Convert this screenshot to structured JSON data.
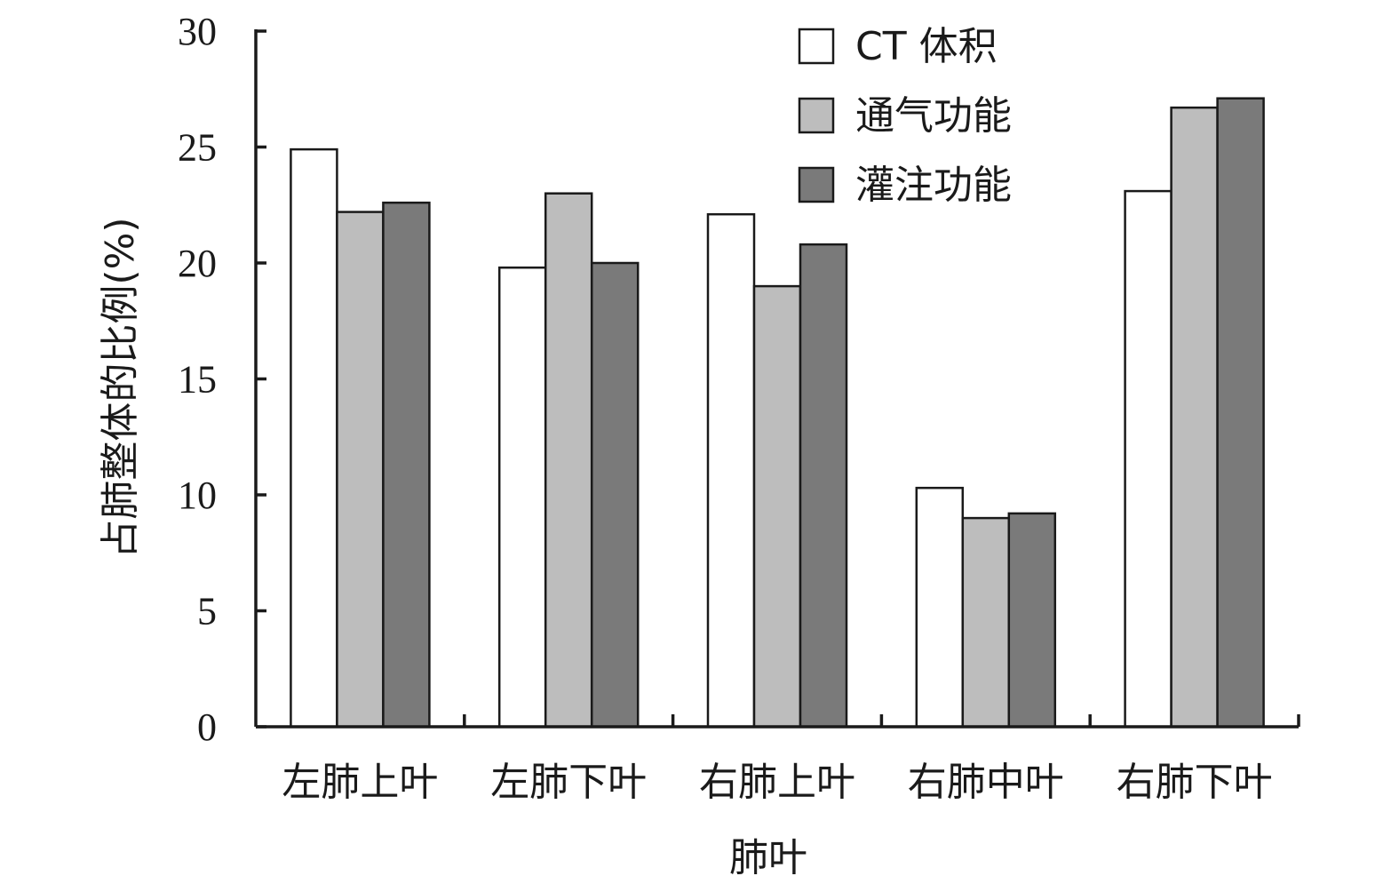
{
  "chart_data": {
    "type": "bar",
    "title": "",
    "xlabel": "肺叶",
    "ylabel": "占肺整体的比例(%)",
    "ylim": [
      0,
      30
    ],
    "yticks": [
      0,
      5,
      10,
      15,
      20,
      25,
      30
    ],
    "categories": [
      "左肺上叶",
      "左肺下叶",
      "右肺上叶",
      "右肺中叶",
      "右肺下叶"
    ],
    "series": [
      {
        "name": "CT 体积",
        "color": "#ffffff",
        "values": [
          24.9,
          19.8,
          22.1,
          10.3,
          23.1
        ]
      },
      {
        "name": "通气功能",
        "color": "#bdbdbd",
        "values": [
          22.2,
          23.0,
          19.0,
          9.0,
          26.7
        ]
      },
      {
        "name": "灌注功能",
        "color": "#7a7a7a",
        "values": [
          22.6,
          20.0,
          20.8,
          9.2,
          27.1
        ]
      }
    ],
    "legend_position": "top-right",
    "grid": false
  }
}
